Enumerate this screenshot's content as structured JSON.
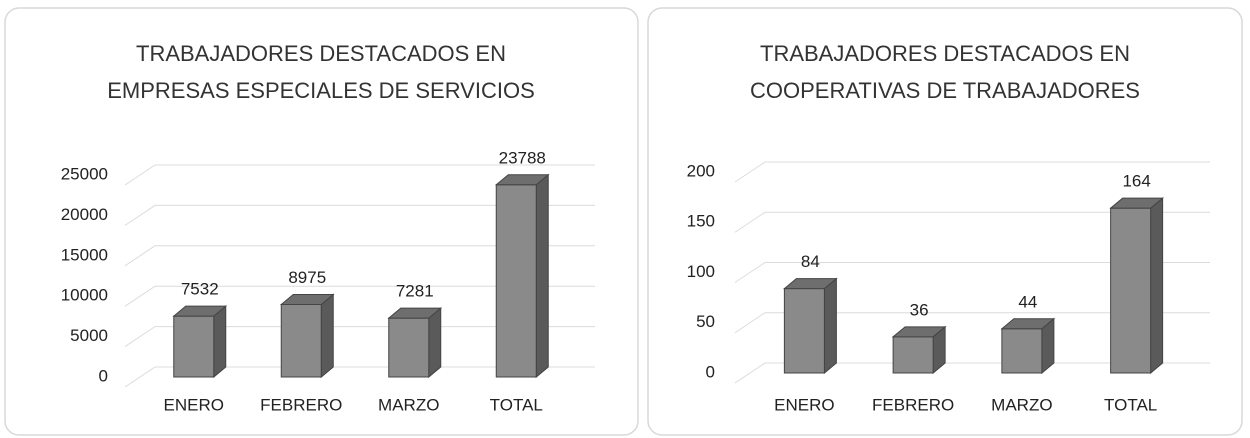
{
  "chart_data": [
    {
      "type": "bar",
      "title": [
        "TRABAJADORES DESTACADOS EN",
        "EMPRESAS ESPECIALES DE SERVICIOS"
      ],
      "categories": [
        "ENERO",
        "FEBRERO",
        "MARZO",
        "TOTAL"
      ],
      "values": [
        7532,
        8975,
        7281,
        23788
      ],
      "color": "#8a8a8a",
      "ylim": [
        0,
        25000
      ],
      "yticks": [
        0,
        5000,
        10000,
        15000,
        20000,
        25000
      ],
      "grid": true
    },
    {
      "type": "bar",
      "title": [
        "TRABAJADORES DESTACADOS EN",
        "COOPERATIVAS DE TRABAJADORES"
      ],
      "categories": [
        "ENERO",
        "FEBRERO",
        "MARZO",
        "TOTAL"
      ],
      "values": [
        84,
        36,
        44,
        164
      ],
      "color": "#8a8a8a",
      "ylim": [
        0,
        200
      ],
      "yticks": [
        0,
        50,
        100,
        150,
        200
      ],
      "grid": true
    }
  ]
}
